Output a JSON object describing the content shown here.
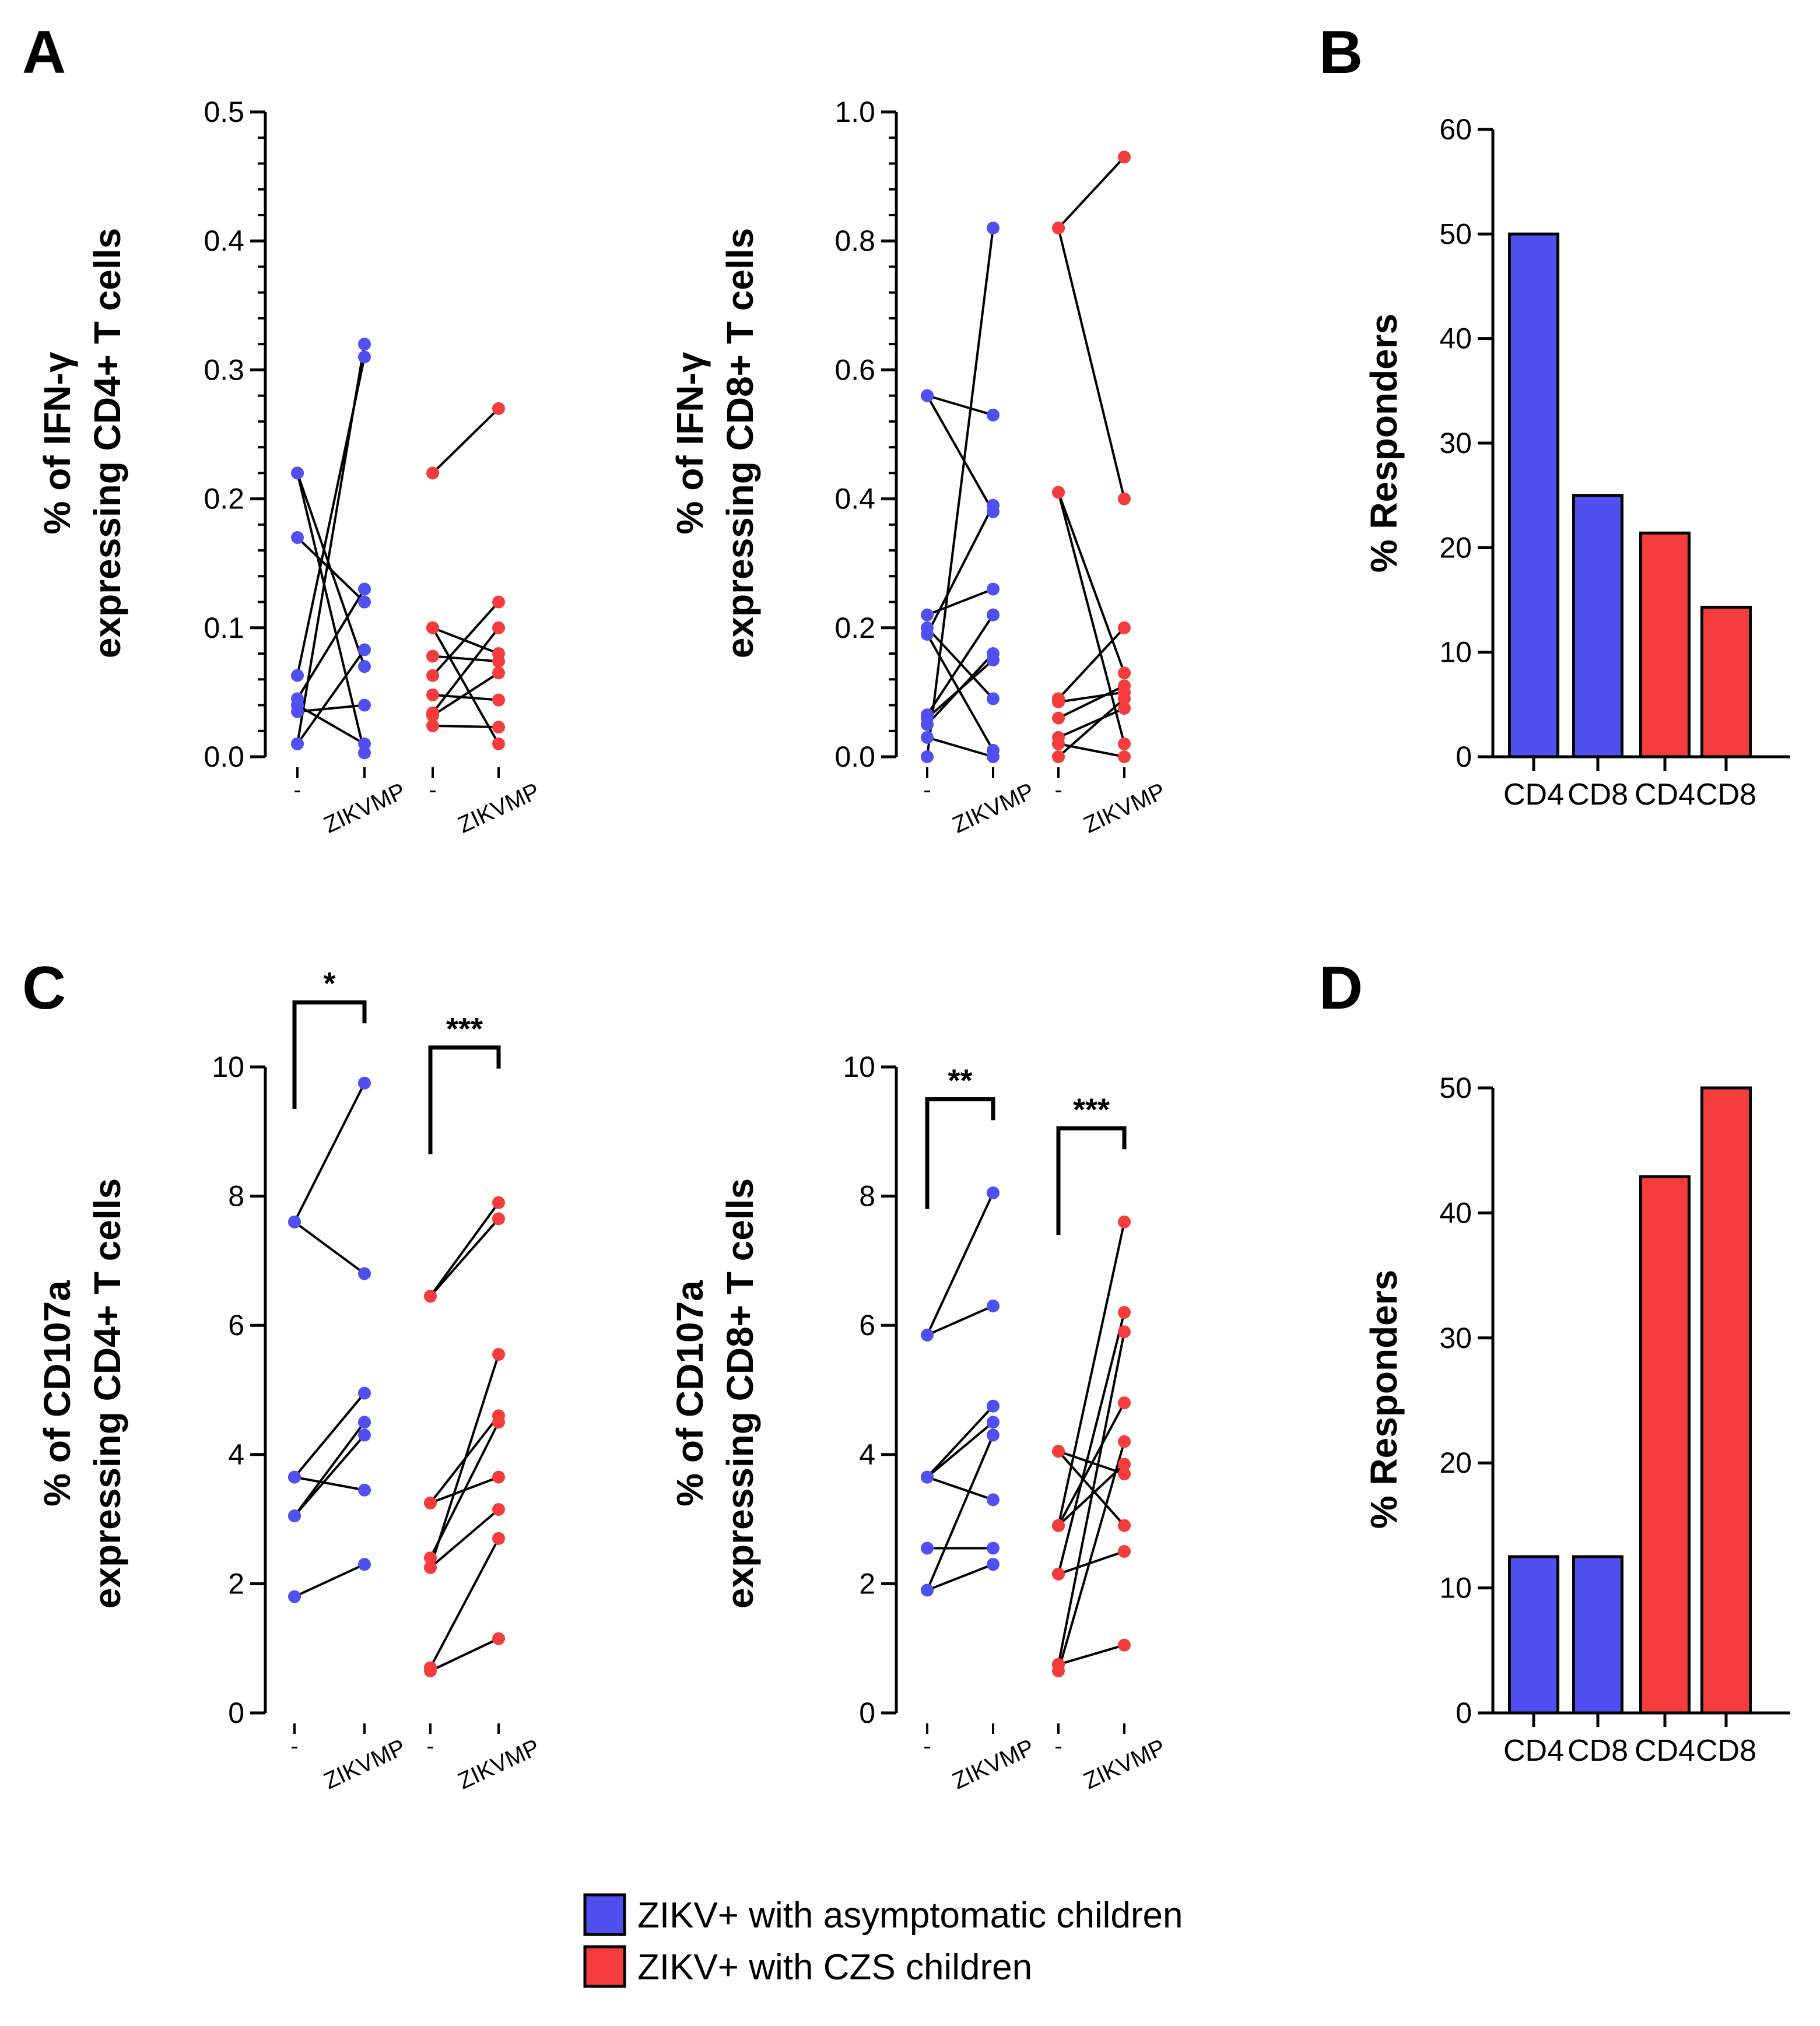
{
  "colors": {
    "asym": "#5050f0",
    "czs": "#f43c3c",
    "line": "#000000"
  },
  "legend": {
    "items": [
      {
        "label": "ZIKV+ with asymptomatic children",
        "color": "#5050f0"
      },
      {
        "label": "ZIKV+ with CZS children",
        "color": "#f43c3c"
      }
    ]
  },
  "chart_data": [
    {
      "panel": "A",
      "type": "paired-scatter",
      "ylabel": [
        "% of IFN-γ",
        "expressing CD4+ T cells"
      ],
      "ylim": [
        0,
        0.5
      ],
      "yticks": [
        0.0,
        0.1,
        0.2,
        0.3,
        0.4,
        0.5
      ],
      "ytick_labels": [
        "0.0",
        "0.1",
        "0.2",
        "0.3",
        "0.4",
        "0.5"
      ],
      "categories": [
        "-",
        "ZIKVMP",
        "-",
        "ZIKVMP"
      ],
      "significance": [],
      "series": [
        {
          "name": "ZIKV+ with asymptomatic children",
          "color": "asym",
          "pairs": [
            [
              0.22,
              0.07
            ],
            [
              0.17,
              0.12
            ],
            [
              0.063,
              0.31
            ],
            [
              0.01,
              0.32
            ],
            [
              0.045,
              0.13
            ],
            [
              0.04,
              0.01
            ],
            [
              0.035,
              0.04
            ],
            [
              0.01,
              0.083
            ],
            [
              0.22,
              0.003
            ]
          ]
        },
        {
          "name": "ZIKV+ with CZS children",
          "color": "czs",
          "pairs": [
            [
              0.22,
              0.27
            ],
            [
              0.1,
              0.01
            ],
            [
              0.1,
              0.08
            ],
            [
              0.078,
              0.074
            ],
            [
              0.063,
              0.12
            ],
            [
              0.048,
              0.044
            ],
            [
              0.034,
              0.1
            ],
            [
              0.032,
              0.065
            ],
            [
              0.024,
              0.023
            ]
          ]
        }
      ]
    },
    {
      "panel": "A",
      "type": "paired-scatter",
      "ylabel": [
        "% of IFN-γ",
        "expressing CD8+ T cells"
      ],
      "ylim": [
        0,
        1.0
      ],
      "yticks": [
        0.0,
        0.2,
        0.4,
        0.6,
        0.8,
        1.0
      ],
      "ytick_labels": [
        "0.0",
        "0.2",
        "0.4",
        "0.6",
        "0.8",
        "1.0"
      ],
      "categories": [
        "-",
        "ZIKVMP",
        "-",
        "ZIKVMP"
      ],
      "significance": [],
      "series": [
        {
          "name": "ZIKV+ with asymptomatic children",
          "color": "asym",
          "pairs": [
            [
              0.56,
              0.53
            ],
            [
              0.22,
              0.26
            ],
            [
              0.19,
              0.39
            ],
            [
              0.19,
              0.01
            ],
            [
              0.065,
              0.22
            ],
            [
              0.05,
              0.16
            ],
            [
              0.0,
              0.82
            ],
            [
              0.06,
              0.15
            ],
            [
              0.2,
              0.09
            ],
            [
              0.56,
              0.38
            ],
            [
              0.03,
              0.0
            ]
          ]
        },
        {
          "name": "ZIKV+ with CZS children",
          "color": "czs",
          "pairs": [
            [
              0.82,
              0.93
            ],
            [
              0.82,
              0.4
            ],
            [
              0.41,
              0.02
            ],
            [
              0.41,
              0.13
            ],
            [
              0.09,
              0.2
            ],
            [
              0.085,
              0.1
            ],
            [
              0.06,
              0.11
            ],
            [
              0.03,
              0.075
            ],
            [
              0.02,
              0.0
            ],
            [
              0.0,
              0.09
            ]
          ]
        }
      ]
    },
    {
      "panel": "B",
      "type": "bar",
      "ylabel": "% Responders",
      "ylim": [
        0,
        60
      ],
      "yticks": [
        0,
        10,
        20,
        30,
        40,
        50,
        60
      ],
      "categories": [
        "CD4",
        "CD8",
        "CD4",
        "CD8"
      ],
      "values": [
        50,
        25,
        21.4,
        14.3
      ],
      "bar_colors": [
        "asym",
        "asym",
        "czs",
        "czs"
      ]
    },
    {
      "panel": "C",
      "type": "paired-scatter",
      "ylabel": [
        "% of CD107a",
        "expressing CD4+ T cells"
      ],
      "ylim": [
        0,
        10
      ],
      "yticks": [
        0,
        2,
        4,
        6,
        8,
        10
      ],
      "ytick_labels": [
        "0",
        "2",
        "4",
        "6",
        "8",
        "10"
      ],
      "categories": [
        "-",
        "ZIKVMP",
        "-",
        "ZIKVMP"
      ],
      "significance": [
        {
          "label": "*",
          "pair": 0,
          "drop_to": 9.35,
          "top": 11.0
        },
        {
          "label": "***",
          "pair": 1,
          "drop_to": 8.65,
          "top": 10.3
        }
      ],
      "series": [
        {
          "name": "ZIKV+ with asymptomatic children",
          "color": "asym",
          "pairs": [
            [
              7.6,
              9.75
            ],
            [
              7.6,
              6.8
            ],
            [
              3.65,
              4.95
            ],
            [
              3.05,
              4.3
            ],
            [
              1.8,
              2.3
            ],
            [
              3.65,
              3.45
            ],
            [
              3.05,
              4.5
            ]
          ]
        },
        {
          "name": "ZIKV+ with CZS children",
          "color": "czs",
          "pairs": [
            [
              6.45,
              7.9
            ],
            [
              6.45,
              7.65
            ],
            [
              3.25,
              4.6
            ],
            [
              3.25,
              3.65
            ],
            [
              2.4,
              4.5
            ],
            [
              2.25,
              5.55
            ],
            [
              0.7,
              2.7
            ],
            [
              0.65,
              1.15
            ],
            [
              2.25,
              3.15
            ]
          ]
        }
      ]
    },
    {
      "panel": "C",
      "type": "paired-scatter",
      "ylabel": [
        "% of CD107a",
        "expressing CD8+ T cells"
      ],
      "ylim": [
        0,
        10
      ],
      "yticks": [
        0,
        2,
        4,
        6,
        8,
        10
      ],
      "ytick_labels": [
        "0",
        "2",
        "4",
        "6",
        "8",
        "10"
      ],
      "categories": [
        "-",
        "ZIKVMP",
        "-",
        "ZIKVMP"
      ],
      "significance": [
        {
          "label": "**",
          "pair": 0,
          "drop_to": 7.8,
          "top": 9.5
        },
        {
          "label": "***",
          "pair": 1,
          "drop_to": 7.4,
          "top": 9.05
        }
      ],
      "series": [
        {
          "name": "ZIKV+ with asymptomatic children",
          "color": "asym",
          "pairs": [
            [
              5.85,
              8.05
            ],
            [
              5.85,
              6.3
            ],
            [
              3.65,
              4.75
            ],
            [
              3.65,
              4.5
            ],
            [
              2.55,
              2.55
            ],
            [
              1.9,
              2.3
            ],
            [
              1.9,
              4.3
            ],
            [
              3.65,
              3.3
            ]
          ]
        },
        {
          "name": "ZIKV+ with CZS children",
          "color": "czs",
          "pairs": [
            [
              4.05,
              3.7
            ],
            [
              4.05,
              2.9
            ],
            [
              2.9,
              4.8
            ],
            [
              2.9,
              3.85
            ],
            [
              2.9,
              7.6
            ],
            [
              2.15,
              6.2
            ],
            [
              0.75,
              5.9
            ],
            [
              0.65,
              4.2
            ],
            [
              2.15,
              2.5
            ],
            [
              0.75,
              1.05
            ]
          ]
        }
      ]
    },
    {
      "panel": "D",
      "type": "bar",
      "ylabel": "% Responders",
      "ylim": [
        0,
        50
      ],
      "yticks": [
        0,
        10,
        20,
        30,
        40,
        50
      ],
      "categories": [
        "CD4",
        "CD8",
        "CD4",
        "CD8"
      ],
      "values": [
        12.5,
        12.5,
        42.9,
        50
      ],
      "bar_colors": [
        "asym",
        "asym",
        "czs",
        "czs"
      ]
    }
  ]
}
